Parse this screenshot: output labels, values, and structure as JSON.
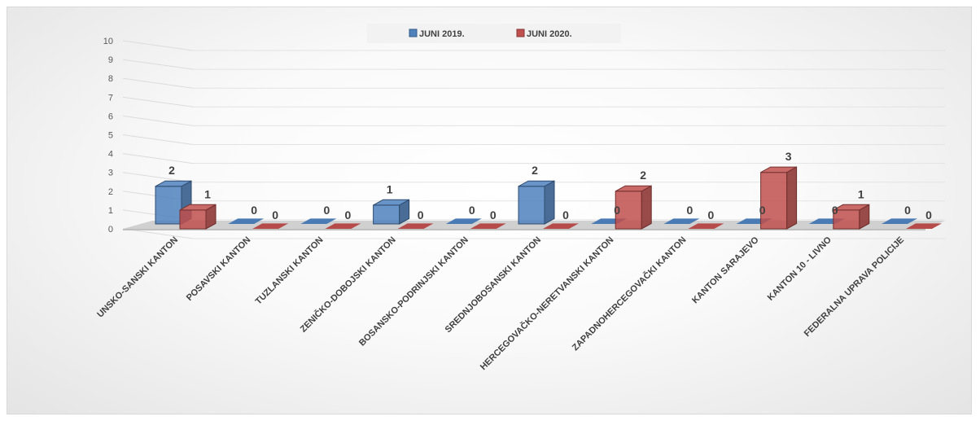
{
  "chart_data": {
    "type": "bar",
    "title": "",
    "xlabel": "",
    "ylabel": "",
    "ylim": [
      0,
      10
    ],
    "yticks": [
      0,
      1,
      2,
      3,
      4,
      5,
      6,
      7,
      8,
      9,
      10
    ],
    "grid": true,
    "legend_position": "top",
    "categories": [
      "UNSKO-SANSKI KANTON",
      "POSAVSKI KANTON",
      "TUZLANSKI KANTON",
      "ZENIČKO-DOBOJSKI KANTON",
      "BOSANSKO-PODRINJSKI KANTON",
      "SREDNJOBOSANSKI KANTON",
      "HERCEGOVAČKO-NERETVANSKI KANTON",
      "ZAPADNOHERCEGOVAČKI KANTON",
      "KANTON SARAJEVO",
      "KANTON 10 - LIVNO",
      "FEDERALNA UPRAVA POLICIJE"
    ],
    "series": [
      {
        "name": "JUNI 2019.",
        "color": "#4f81bd",
        "values": [
          2,
          0,
          0,
          1,
          0,
          2,
          0,
          0,
          0,
          0,
          0
        ]
      },
      {
        "name": "JUNI 2020.",
        "color": "#c0504d",
        "values": [
          1,
          0,
          0,
          0,
          0,
          0,
          2,
          0,
          3,
          1,
          0
        ]
      }
    ]
  }
}
